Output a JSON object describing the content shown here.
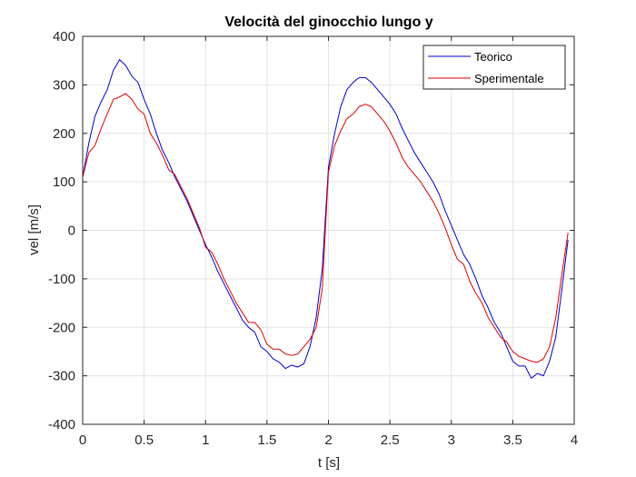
{
  "chart_data": {
    "type": "line",
    "title": "Velocità del ginocchio lungo y",
    "xlabel": "t [s]",
    "ylabel": "vel [m/s]",
    "xlim": [
      0,
      4
    ],
    "ylim": [
      -400,
      400
    ],
    "xticks": [
      0,
      0.5,
      1,
      1.5,
      2,
      2.5,
      3,
      3.5,
      4
    ],
    "xtick_labels": [
      "0",
      "0.5",
      "1",
      "1.5",
      "2",
      "2.5",
      "3",
      "3.5",
      "4"
    ],
    "yticks": [
      -400,
      -300,
      -200,
      -100,
      0,
      100,
      200,
      300,
      400
    ],
    "ytick_labels": [
      "-400",
      "-300",
      "-200",
      "-100",
      "0",
      "100",
      "200",
      "300",
      "400"
    ],
    "grid": true,
    "legend_position": "top-right",
    "series": [
      {
        "name": "Teorico",
        "color": "#0000cc",
        "x": [
          0,
          0.05,
          0.1,
          0.15,
          0.2,
          0.25,
          0.3,
          0.35,
          0.4,
          0.45,
          0.5,
          0.55,
          0.6,
          0.65,
          0.7,
          0.75,
          0.8,
          0.85,
          0.9,
          0.95,
          1.0,
          1.05,
          1.1,
          1.15,
          1.2,
          1.25,
          1.3,
          1.35,
          1.4,
          1.45,
          1.5,
          1.55,
          1.6,
          1.65,
          1.7,
          1.75,
          1.8,
          1.85,
          1.9,
          1.95,
          2.0,
          2.05,
          2.1,
          2.15,
          2.2,
          2.25,
          2.3,
          2.35,
          2.4,
          2.45,
          2.5,
          2.55,
          2.6,
          2.65,
          2.7,
          2.75,
          2.8,
          2.85,
          2.9,
          2.95,
          3.0,
          3.05,
          3.1,
          3.15,
          3.2,
          3.25,
          3.3,
          3.35,
          3.4,
          3.45,
          3.5,
          3.55,
          3.6,
          3.65,
          3.7,
          3.75,
          3.8,
          3.85,
          3.9,
          3.95
        ],
        "y": [
          110,
          180,
          235,
          265,
          290,
          330,
          352,
          340,
          318,
          305,
          270,
          240,
          200,
          165,
          140,
          110,
          85,
          60,
          30,
          0,
          -30,
          -55,
          -85,
          -110,
          -135,
          -160,
          -185,
          -200,
          -210,
          -240,
          -250,
          -265,
          -272,
          -285,
          -278,
          -282,
          -275,
          -240,
          -180,
          -80,
          130,
          200,
          255,
          290,
          305,
          315,
          315,
          305,
          290,
          275,
          260,
          240,
          210,
          185,
          160,
          140,
          120,
          100,
          75,
          40,
          10,
          -20,
          -50,
          -70,
          -100,
          -135,
          -160,
          -190,
          -210,
          -240,
          -270,
          -280,
          -280,
          -305,
          -295,
          -300,
          -270,
          -220,
          -120,
          -20
        ]
      },
      {
        "name": "Sperimentale",
        "color": "#dd0000",
        "x": [
          0,
          0.05,
          0.1,
          0.15,
          0.2,
          0.25,
          0.3,
          0.35,
          0.4,
          0.45,
          0.5,
          0.55,
          0.6,
          0.65,
          0.7,
          0.75,
          0.8,
          0.85,
          0.9,
          0.95,
          1.0,
          1.05,
          1.1,
          1.15,
          1.2,
          1.25,
          1.3,
          1.35,
          1.4,
          1.45,
          1.5,
          1.55,
          1.6,
          1.65,
          1.7,
          1.75,
          1.8,
          1.85,
          1.9,
          1.95,
          2.0,
          2.05,
          2.1,
          2.15,
          2.2,
          2.25,
          2.3,
          2.35,
          2.4,
          2.45,
          2.5,
          2.55,
          2.6,
          2.65,
          2.7,
          2.75,
          2.8,
          2.85,
          2.9,
          2.95,
          3.0,
          3.05,
          3.1,
          3.15,
          3.2,
          3.25,
          3.3,
          3.35,
          3.4,
          3.45,
          3.5,
          3.55,
          3.6,
          3.65,
          3.7,
          3.75,
          3.8,
          3.85,
          3.9,
          3.95
        ],
        "y": [
          110,
          160,
          175,
          210,
          240,
          270,
          275,
          282,
          270,
          250,
          240,
          200,
          180,
          155,
          125,
          115,
          90,
          65,
          35,
          5,
          -35,
          -45,
          -70,
          -100,
          -125,
          -150,
          -170,
          -190,
          -190,
          -205,
          -235,
          -245,
          -245,
          -255,
          -258,
          -255,
          -240,
          -225,
          -200,
          -120,
          120,
          175,
          205,
          230,
          240,
          255,
          260,
          255,
          240,
          225,
          205,
          180,
          150,
          130,
          115,
          100,
          80,
          60,
          35,
          5,
          -30,
          -60,
          -70,
          -105,
          -130,
          -150,
          -180,
          -200,
          -220,
          -230,
          -250,
          -260,
          -265,
          -270,
          -272,
          -265,
          -240,
          -180,
          -90,
          -5
        ]
      }
    ]
  }
}
